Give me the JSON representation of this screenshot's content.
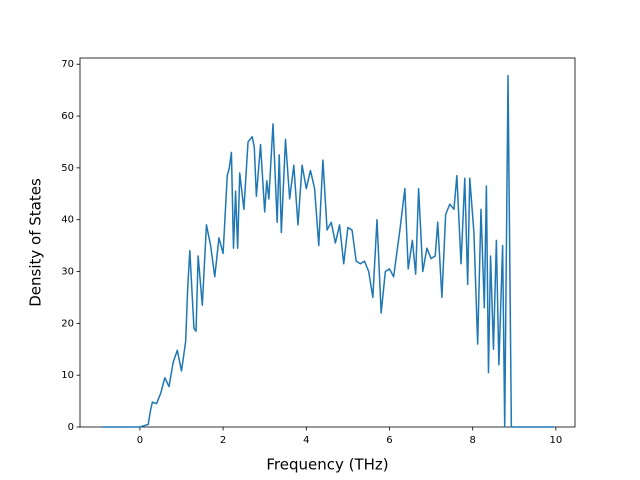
{
  "chart_data": {
    "type": "line",
    "xlabel": "Frequency (THz)",
    "ylabel": "Density of States",
    "x": [
      -0.9,
      -0.5,
      0,
      0.2,
      0.25,
      0.3,
      0.4,
      0.5,
      0.6,
      0.7,
      0.8,
      0.9,
      1.0,
      1.1,
      1.15,
      1.2,
      1.3,
      1.35,
      1.4,
      1.5,
      1.6,
      1.7,
      1.8,
      1.9,
      2.0,
      2.1,
      2.15,
      2.2,
      2.25,
      2.3,
      2.35,
      2.4,
      2.5,
      2.6,
      2.7,
      2.75,
      2.8,
      2.9,
      3.0,
      3.05,
      3.1,
      3.2,
      3.3,
      3.35,
      3.4,
      3.5,
      3.6,
      3.7,
      3.8,
      3.9,
      4.0,
      4.1,
      4.2,
      4.3,
      4.35,
      4.4,
      4.5,
      4.6,
      4.7,
      4.8,
      4.9,
      5.0,
      5.1,
      5.2,
      5.3,
      5.4,
      5.5,
      5.6,
      5.7,
      5.8,
      5.9,
      6.0,
      6.1,
      6.2,
      6.25,
      6.37,
      6.45,
      6.55,
      6.63,
      6.7,
      6.8,
      6.9,
      7.0,
      7.1,
      7.16,
      7.26,
      7.35,
      7.45,
      7.55,
      7.62,
      7.72,
      7.81,
      7.88,
      7.93,
      8.03,
      8.12,
      8.2,
      8.28,
      8.33,
      8.38,
      8.43,
      8.5,
      8.57,
      8.63,
      8.72,
      8.77,
      8.85,
      8.93,
      9.5,
      9.95
    ],
    "series": [
      {
        "name": "DOS",
        "color": "#1f77b4",
        "values": [
          0,
          0,
          0,
          0.5,
          3,
          4.8,
          4.5,
          6.5,
          9.5,
          7.8,
          12.5,
          14.8,
          10.8,
          16.5,
          27,
          34,
          19,
          18.5,
          33,
          23.5,
          39,
          35,
          29,
          36.5,
          33.5,
          48.5,
          50,
          53,
          34.5,
          45.5,
          34.5,
          49,
          42,
          55,
          56,
          54,
          44.5,
          54.5,
          41.5,
          47.5,
          44,
          58.5,
          39.5,
          52.5,
          37.5,
          55.5,
          44,
          50.5,
          39,
          50.5,
          46,
          49.5,
          46,
          35,
          43.5,
          51.5,
          38,
          39.5,
          35.5,
          39,
          31.5,
          38.5,
          38,
          32,
          31.5,
          32,
          30,
          25,
          40,
          22,
          30,
          30.5,
          29,
          35,
          38,
          46,
          30.5,
          36,
          29.5,
          46,
          30,
          34.5,
          32.5,
          33,
          39.5,
          25,
          41,
          43,
          42,
          48.5,
          31.5,
          48,
          27.5,
          48,
          37.5,
          16,
          42,
          23,
          46.5,
          10.5,
          33,
          15,
          36,
          12,
          35,
          0,
          67.8,
          0,
          0,
          0
        ]
      }
    ],
    "xlim": [
      -1.44,
      10.46
    ],
    "ylim": [
      0,
      71.2
    ],
    "xticks": [
      0,
      2,
      4,
      6,
      8,
      10
    ],
    "yticks": [
      0,
      10,
      20,
      30,
      40,
      50,
      60,
      70
    ]
  }
}
